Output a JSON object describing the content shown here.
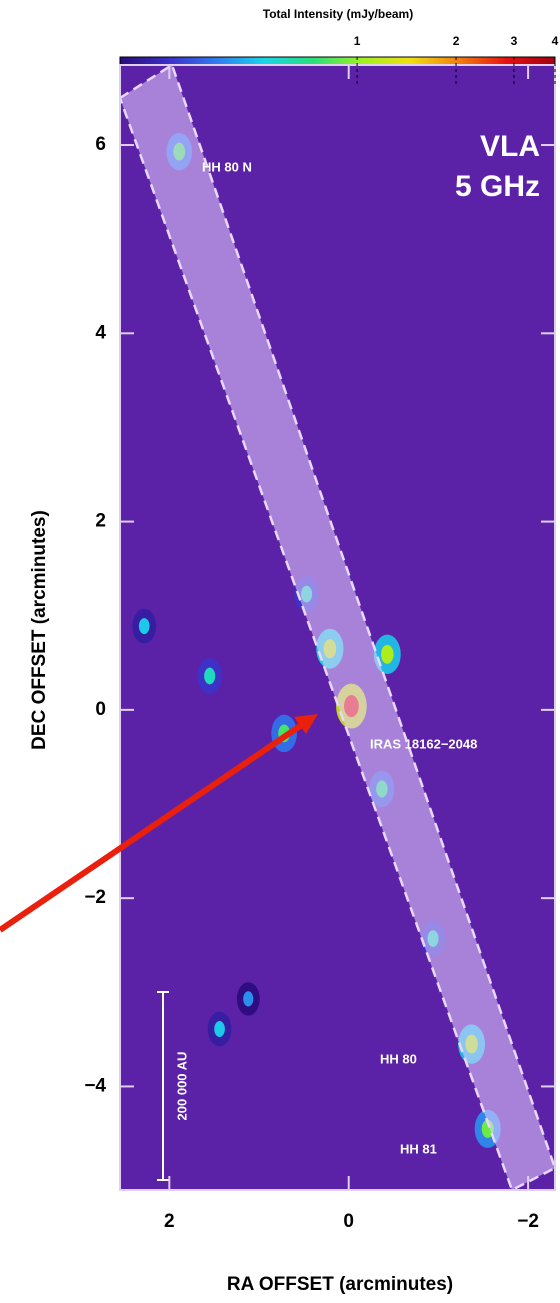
{
  "chart_data": {
    "type": "image",
    "colorbar": {
      "title": "Total Intensity (mJy/beam)",
      "lim": [
        0.19,
        4
      ],
      "log": true,
      "ticks": [
        1,
        2,
        3,
        4
      ],
      "colors": [
        "#2a0a7a",
        "#3a30c8",
        "#2f7cf0",
        "#19d6e8",
        "#28e07a",
        "#9ef020",
        "#f0e010",
        "#f08010",
        "#e81010",
        "#a00010"
      ]
    },
    "background": "#5b22a8",
    "xlabel": "RA OFFSET (arcminutes)",
    "ylabel": "DEC OFFSET (arcminutes)",
    "xlim": [
      2.55,
      -2.3
    ],
    "ylim": [
      -5.1,
      6.85
    ],
    "xticks": [
      2,
      0,
      {
        "value": -2,
        "label": "−2"
      }
    ],
    "yticks": [
      6,
      4,
      2,
      0,
      {
        "value": -2,
        "label": "−2"
      },
      {
        "value": -4,
        "label": "−4"
      }
    ],
    "sources": {
      "x": [
        1.89,
        -0.03,
        0.21,
        0.47,
        -0.37,
        -0.43,
        1.55,
        0.72,
        2.28,
        -0.94,
        -1.37,
        -1.55,
        1.44,
        1.12
      ],
      "y": [
        5.93,
        0.04,
        0.65,
        1.23,
        -0.84,
        0.59,
        0.36,
        -0.25,
        0.89,
        -2.43,
        -3.55,
        -4.45,
        -3.39,
        -3.07
      ],
      "peak": [
        0.8,
        2.8,
        1.2,
        0.6,
        0.7,
        1.1,
        0.6,
        0.8,
        0.5,
        0.6,
        1.1,
        0.9,
        0.5,
        0.4
      ]
    },
    "annotations": [
      "VLA",
      "5 GHz",
      "HH 80 N",
      "IRAS 18162−2048",
      "HH 80",
      "HH 81",
      "200 000 AU"
    ]
  }
}
